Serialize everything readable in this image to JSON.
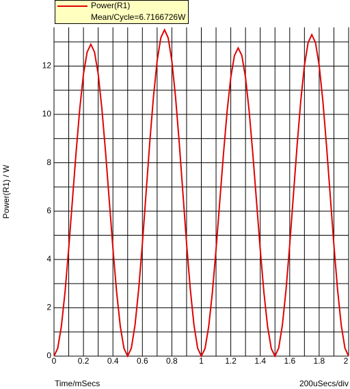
{
  "chart_data": {
    "type": "line",
    "y_label": "Power(R1) / W",
    "x_label": "Time/mSecs",
    "x_scale_label": "200uSecs/div",
    "legend_note": "Mean/Cycle=6.7166726W",
    "x": [
      0,
      0.025,
      0.05,
      0.075,
      0.1,
      0.125,
      0.15,
      0.175,
      0.2,
      0.225,
      0.25,
      0.275,
      0.3,
      0.325,
      0.35,
      0.375,
      0.4,
      0.425,
      0.45,
      0.475,
      0.5,
      0.525,
      0.55,
      0.575,
      0.6,
      0.625,
      0.65,
      0.675,
      0.7,
      0.725,
      0.75,
      0.775,
      0.8,
      0.825,
      0.85,
      0.875,
      0.9,
      0.925,
      0.95,
      0.975,
      1,
      1.025,
      1.05,
      1.075,
      1.1,
      1.125,
      1.15,
      1.175,
      1.2,
      1.225,
      1.25,
      1.275,
      1.3,
      1.325,
      1.35,
      1.375,
      1.4,
      1.425,
      1.45,
      1.475,
      1.5,
      1.525,
      1.55,
      1.575,
      1.6,
      1.625,
      1.65,
      1.675,
      1.7,
      1.725,
      1.75,
      1.775,
      1.8,
      1.825,
      1.85,
      1.875,
      1.9,
      1.925,
      1.95,
      1.975,
      2
    ],
    "series": [
      {
        "name": "Power(R1)",
        "color": "#e00000",
        "values": [
          0,
          0.32,
          1.23,
          2.66,
          4.46,
          6.45,
          8.44,
          10.24,
          11.67,
          12.58,
          12.9,
          12.58,
          11.67,
          10.24,
          8.44,
          6.45,
          4.46,
          2.66,
          1.23,
          0.32,
          0,
          0.33,
          1.29,
          2.78,
          4.66,
          6.75,
          8.84,
          10.72,
          12.21,
          13.17,
          13.5,
          13.17,
          12.21,
          10.72,
          8.84,
          6.75,
          4.66,
          2.78,
          1.29,
          0.33,
          0,
          0.31,
          1.22,
          2.63,
          4.41,
          6.38,
          8.34,
          10.12,
          11.53,
          12.44,
          12.75,
          12.44,
          11.53,
          10.12,
          8.34,
          6.38,
          4.41,
          2.63,
          1.22,
          0.31,
          0,
          0.33,
          1.27,
          2.74,
          4.6,
          6.65,
          8.7,
          10.56,
          12.03,
          12.97,
          13.3,
          12.97,
          12.03,
          10.56,
          8.7,
          6.65,
          4.6,
          2.74,
          1.27,
          0.33,
          0
        ]
      }
    ],
    "xlim": [
      0,
      2
    ],
    "ylim": [
      0,
      13.6
    ],
    "xticks": [
      0,
      0.2,
      0.4,
      0.6,
      0.8,
      1,
      1.2,
      1.4,
      1.6,
      1.8,
      2
    ],
    "yticks": [
      0,
      2,
      4,
      6,
      8,
      10,
      12
    ],
    "x_minor_grid": [
      0.1,
      0.3,
      0.5,
      0.7,
      0.9,
      1.1,
      1.3,
      1.5,
      1.7,
      1.9
    ],
    "y_minor_grid": [
      1,
      3,
      5,
      7,
      9,
      11,
      13
    ],
    "grid": true,
    "grid_color": "#000000",
    "legend_background": "#ffffc0"
  }
}
